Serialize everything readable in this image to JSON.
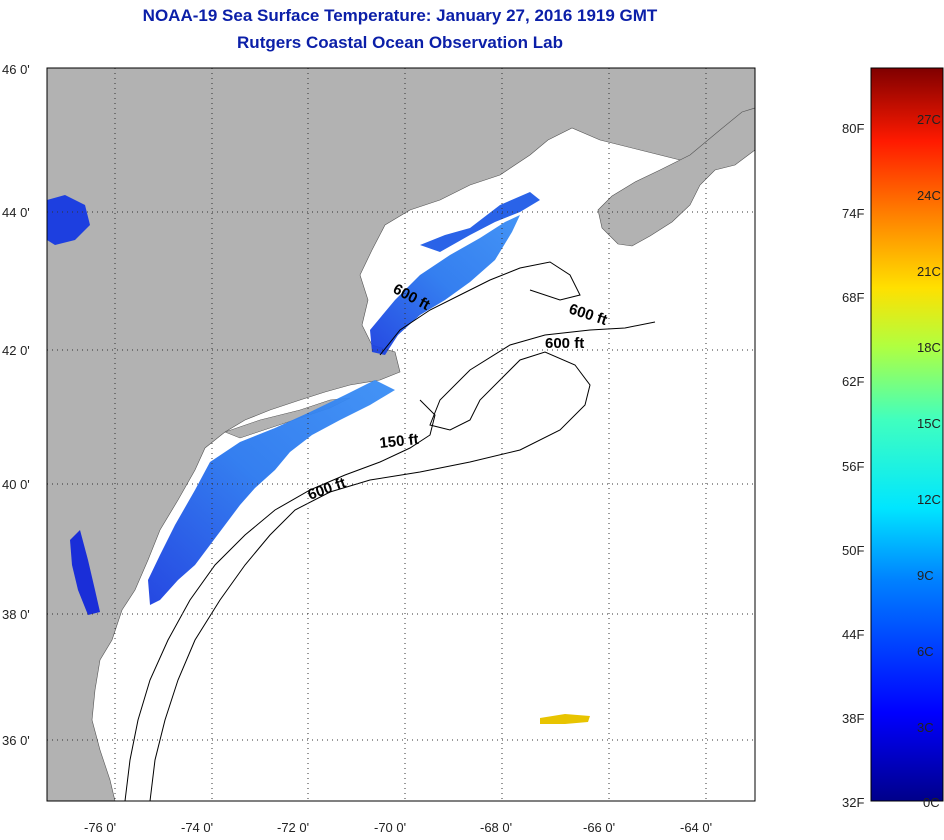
{
  "title": {
    "line1": "NOAA-19 Sea Surface Temperature:  January 27, 2016 1919 GMT",
    "line2": "Rutgers Coastal Ocean Observation Lab"
  },
  "map": {
    "lat_labels": [
      "46 0'",
      "44 0'",
      "42 0'",
      "40 0'",
      "38 0'",
      "36 0'"
    ],
    "lon_labels": [
      "-76 0'",
      "-74 0'",
      "-72 0'",
      "-70 0'",
      "-68 0'",
      "-66 0'",
      "-64 0'"
    ],
    "isobath_labels": [
      {
        "text": "600 ft"
      },
      {
        "text": "600 ft"
      },
      {
        "text": "600 ft"
      },
      {
        "text": "150 ft"
      },
      {
        "text": "600 ft"
      }
    ],
    "colors": {
      "land": "#b2b2b2",
      "ocean": "#ffffff",
      "cold_sst": "#1a4fe0",
      "warm_patch": "#e8c400"
    }
  },
  "colorbar": {
    "fahrenheit_labels": [
      "80F",
      "74F",
      "68F",
      "62F",
      "56F",
      "50F",
      "44F",
      "38F",
      "32F"
    ],
    "celsius_labels": [
      "27C",
      "24C",
      "21C",
      "18C",
      "15C",
      "12C",
      "9C",
      "6C",
      "3C",
      "0C"
    ]
  }
}
